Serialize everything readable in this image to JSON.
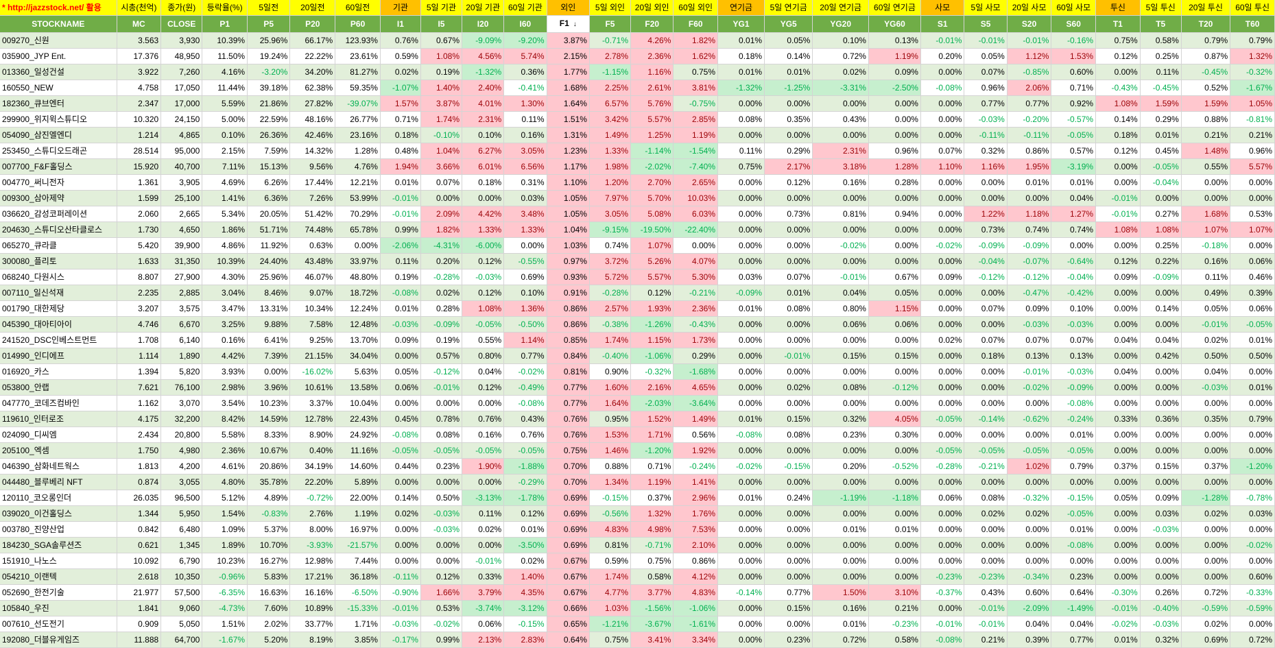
{
  "site_url": "* http://jazzstock.net/ 활용",
  "group_headers": [
    "시총(천억)",
    "종가(원)",
    "등락율(%)",
    "5일전",
    "20일전",
    "60일전",
    "기관",
    "5일 기관",
    "20일 기관",
    "60일 기관",
    "외인",
    "5일 외인",
    "20일 외인",
    "60일 외인",
    "연기금",
    "5일 연기금",
    "20일 연기금",
    "60일 연기금",
    "사모",
    "5일 사모",
    "20일 사모",
    "60일 사모",
    "투신",
    "5일 투신",
    "20일 투신",
    "60일 투신"
  ],
  "column_headers": [
    "STOCKNAME",
    "MC",
    "CLOSE",
    "P1",
    "P5",
    "P20",
    "P60",
    "I1",
    "I5",
    "I20",
    "I60",
    "F1",
    "F5",
    "F20",
    "F60",
    "YG1",
    "YG5",
    "YG20",
    "YG60",
    "S1",
    "S5",
    "S20",
    "S60",
    "T1",
    "T5",
    "T20",
    "T60"
  ],
  "sort_indicator": "↓",
  "rows": [
    [
      "009270_신원",
      "3.563",
      "3,930",
      "10.39%",
      "25.96%",
      "66.17%",
      "123.93%",
      "0.76%",
      "0.67%",
      "-9.09%",
      "-9.20%",
      "3.87%",
      "-0.71%",
      "4.26%",
      "1.82%",
      "0.01%",
      "0.05%",
      "0.10%",
      "0.13%",
      "-0.01%",
      "-0.01%",
      "-0.01%",
      "-0.16%",
      "0.75%",
      "0.58%",
      "0.79%",
      "0.79%"
    ],
    [
      "035900_JYP Ent.",
      "17.376",
      "48,950",
      "11.50%",
      "19.24%",
      "22.22%",
      "23.61%",
      "0.59%",
      "1.08%",
      "4.56%",
      "5.74%",
      "2.15%",
      "2.78%",
      "2.36%",
      "1.62%",
      "0.18%",
      "0.14%",
      "0.72%",
      "1.19%",
      "0.20%",
      "0.05%",
      "1.12%",
      "1.53%",
      "0.12%",
      "0.25%",
      "0.87%",
      "1.32%"
    ],
    [
      "013360_일성건설",
      "3.922",
      "7,260",
      "4.16%",
      "-3.20%",
      "34.20%",
      "81.27%",
      "0.02%",
      "0.19%",
      "-1.32%",
      "0.36%",
      "1.77%",
      "-1.15%",
      "1.16%",
      "0.75%",
      "0.01%",
      "0.01%",
      "0.02%",
      "0.09%",
      "0.00%",
      "0.07%",
      "-0.85%",
      "0.60%",
      "0.00%",
      "0.11%",
      "-0.45%",
      "-0.32%"
    ],
    [
      "160550_NEW",
      "4.758",
      "17,050",
      "11.44%",
      "39.18%",
      "62.38%",
      "59.35%",
      "-1.07%",
      "1.40%",
      "2.40%",
      "-0.41%",
      "1.68%",
      "2.25%",
      "2.61%",
      "3.81%",
      "-1.32%",
      "-1.25%",
      "-3.31%",
      "-2.50%",
      "-0.08%",
      "0.96%",
      "2.06%",
      "0.71%",
      "-0.43%",
      "-0.45%",
      "0.52%",
      "-1.67%"
    ],
    [
      "182360_큐브엔터",
      "2.347",
      "17,000",
      "5.59%",
      "21.86%",
      "27.82%",
      "-39.07%",
      "1.57%",
      "3.87%",
      "4.01%",
      "1.30%",
      "1.64%",
      "6.57%",
      "5.76%",
      "-0.75%",
      "0.00%",
      "0.00%",
      "0.00%",
      "0.00%",
      "0.00%",
      "0.77%",
      "0.77%",
      "0.92%",
      "1.08%",
      "1.59%",
      "1.59%",
      "1.05%"
    ],
    [
      "299900_위지윅스튜디오",
      "10.320",
      "24,150",
      "5.00%",
      "22.59%",
      "48.16%",
      "26.77%",
      "0.71%",
      "1.74%",
      "2.31%",
      "0.11%",
      "1.51%",
      "3.42%",
      "5.57%",
      "2.85%",
      "0.08%",
      "0.35%",
      "0.43%",
      "0.00%",
      "0.00%",
      "-0.03%",
      "-0.20%",
      "-0.57%",
      "0.14%",
      "0.29%",
      "0.88%",
      "-0.81%"
    ],
    [
      "054090_삼진엘엔디",
      "1.214",
      "4,865",
      "0.10%",
      "26.36%",
      "42.46%",
      "23.16%",
      "0.18%",
      "-0.10%",
      "0.10%",
      "0.16%",
      "1.31%",
      "1.49%",
      "1.25%",
      "1.19%",
      "0.00%",
      "0.00%",
      "0.00%",
      "0.00%",
      "0.00%",
      "-0.11%",
      "-0.11%",
      "-0.05%",
      "0.18%",
      "0.01%",
      "0.21%",
      "0.21%"
    ],
    [
      "253450_스튜디오드래곤",
      "28.514",
      "95,000",
      "2.15%",
      "7.59%",
      "14.32%",
      "1.28%",
      "0.48%",
      "1.04%",
      "6.27%",
      "3.05%",
      "1.23%",
      "1.33%",
      "-1.14%",
      "-1.54%",
      "0.11%",
      "0.29%",
      "2.31%",
      "0.96%",
      "0.07%",
      "0.32%",
      "0.86%",
      "0.57%",
      "0.12%",
      "0.45%",
      "1.48%",
      "0.96%"
    ],
    [
      "007700_F&F홀딩스",
      "15.920",
      "40,700",
      "7.11%",
      "15.13%",
      "9.56%",
      "4.76%",
      "1.94%",
      "3.66%",
      "6.01%",
      "6.56%",
      "1.17%",
      "1.98%",
      "-2.02%",
      "-7.40%",
      "0.75%",
      "2.17%",
      "3.18%",
      "1.28%",
      "1.10%",
      "1.16%",
      "1.95%",
      "-3.19%",
      "0.00%",
      "-0.05%",
      "0.55%",
      "5.57%"
    ],
    [
      "004770_써니전자",
      "1.361",
      "3,905",
      "4.69%",
      "6.26%",
      "17.44%",
      "12.21%",
      "0.01%",
      "0.07%",
      "0.18%",
      "0.31%",
      "1.10%",
      "1.20%",
      "2.70%",
      "2.65%",
      "0.00%",
      "0.12%",
      "0.16%",
      "0.28%",
      "0.00%",
      "0.00%",
      "0.01%",
      "0.01%",
      "0.00%",
      "-0.04%",
      "0.00%",
      "0.00%"
    ],
    [
      "009300_삼아제약",
      "1.599",
      "25,100",
      "1.41%",
      "6.36%",
      "7.26%",
      "53.99%",
      "-0.01%",
      "0.00%",
      "0.00%",
      "0.03%",
      "1.05%",
      "7.97%",
      "5.70%",
      "10.03%",
      "0.00%",
      "0.00%",
      "0.00%",
      "0.00%",
      "0.00%",
      "0.00%",
      "0.00%",
      "0.04%",
      "-0.01%",
      "0.00%",
      "0.00%",
      "0.00%"
    ],
    [
      "036620_감성코퍼레이션",
      "2.060",
      "2,665",
      "5.34%",
      "20.05%",
      "51.42%",
      "70.29%",
      "-0.01%",
      "2.09%",
      "4.42%",
      "3.48%",
      "1.05%",
      "3.05%",
      "5.08%",
      "6.03%",
      "0.00%",
      "0.73%",
      "0.81%",
      "0.94%",
      "0.00%",
      "1.22%",
      "1.18%",
      "1.27%",
      "-0.01%",
      "0.27%",
      "1.68%",
      "0.53%"
    ],
    [
      "204630_스튜디오산타클로스",
      "1.730",
      "4,650",
      "1.86%",
      "51.71%",
      "74.48%",
      "65.78%",
      "0.99%",
      "1.82%",
      "1.33%",
      "1.33%",
      "1.04%",
      "-9.15%",
      "-19.50%",
      "-22.40%",
      "0.00%",
      "0.00%",
      "0.00%",
      "0.00%",
      "0.00%",
      "0.73%",
      "0.74%",
      "0.74%",
      "1.08%",
      "1.08%",
      "1.07%",
      "1.07%"
    ],
    [
      "065270_큐라클",
      "5.420",
      "39,900",
      "4.86%",
      "11.92%",
      "0.63%",
      "0.00%",
      "-2.06%",
      "-4.31%",
      "-6.00%",
      "0.00%",
      "1.03%",
      "0.74%",
      "1.07%",
      "0.00%",
      "0.00%",
      "0.00%",
      "-0.02%",
      "0.00%",
      "-0.02%",
      "-0.09%",
      "-0.09%",
      "0.00%",
      "0.00%",
      "0.25%",
      "-0.18%",
      "0.00%"
    ],
    [
      "300080_플리토",
      "1.633",
      "31,350",
      "10.39%",
      "24.40%",
      "43.48%",
      "33.97%",
      "0.11%",
      "0.20%",
      "0.12%",
      "-0.55%",
      "0.97%",
      "3.72%",
      "5.26%",
      "4.07%",
      "0.00%",
      "0.00%",
      "0.00%",
      "0.00%",
      "0.00%",
      "-0.04%",
      "-0.07%",
      "-0.64%",
      "0.12%",
      "0.22%",
      "0.16%",
      "0.06%"
    ],
    [
      "068240_다원시스",
      "8.807",
      "27,900",
      "4.30%",
      "25.96%",
      "46.07%",
      "48.80%",
      "0.19%",
      "-0.28%",
      "-0.03%",
      "0.69%",
      "0.93%",
      "5.72%",
      "5.57%",
      "5.30%",
      "0.03%",
      "0.07%",
      "-0.01%",
      "0.67%",
      "0.09%",
      "-0.12%",
      "-0.12%",
      "-0.04%",
      "0.09%",
      "-0.09%",
      "0.11%",
      "0.46%"
    ],
    [
      "007110_일신석재",
      "2.235",
      "2,885",
      "3.04%",
      "8.46%",
      "9.07%",
      "18.72%",
      "-0.08%",
      "0.02%",
      "0.12%",
      "0.10%",
      "0.91%",
      "-0.28%",
      "0.12%",
      "-0.21%",
      "-0.09%",
      "0.01%",
      "0.04%",
      "0.05%",
      "0.00%",
      "0.00%",
      "-0.47%",
      "-0.42%",
      "0.00%",
      "0.00%",
      "0.49%",
      "0.39%"
    ],
    [
      "001790_대한제당",
      "3.207",
      "3,575",
      "3.47%",
      "13.31%",
      "10.34%",
      "12.24%",
      "0.01%",
      "0.28%",
      "1.08%",
      "1.36%",
      "0.86%",
      "2.57%",
      "1.93%",
      "2.36%",
      "0.01%",
      "0.08%",
      "0.80%",
      "1.15%",
      "0.00%",
      "0.07%",
      "0.09%",
      "0.10%",
      "0.00%",
      "0.14%",
      "0.05%",
      "0.06%"
    ],
    [
      "045390_대아티아이",
      "4.746",
      "6,670",
      "3.25%",
      "9.88%",
      "7.58%",
      "12.48%",
      "-0.03%",
      "-0.09%",
      "-0.05%",
      "-0.50%",
      "0.86%",
      "-0.38%",
      "-1.26%",
      "-0.43%",
      "0.00%",
      "0.00%",
      "0.06%",
      "0.06%",
      "0.00%",
      "0.00%",
      "-0.03%",
      "-0.03%",
      "0.00%",
      "0.00%",
      "-0.01%",
      "-0.05%"
    ],
    [
      "241520_DSC인베스트먼트",
      "1.708",
      "6,140",
      "0.16%",
      "6.41%",
      "9.25%",
      "13.70%",
      "0.09%",
      "0.19%",
      "0.55%",
      "1.14%",
      "0.85%",
      "1.74%",
      "1.15%",
      "1.73%",
      "0.00%",
      "0.00%",
      "0.00%",
      "0.00%",
      "0.02%",
      "0.07%",
      "0.07%",
      "0.07%",
      "0.04%",
      "0.04%",
      "0.02%",
      "0.01%"
    ],
    [
      "014990_인디에프",
      "1.114",
      "1,890",
      "4.42%",
      "7.39%",
      "21.15%",
      "34.04%",
      "0.00%",
      "0.57%",
      "0.80%",
      "0.77%",
      "0.84%",
      "-0.40%",
      "-1.06%",
      "0.29%",
      "0.00%",
      "-0.01%",
      "0.15%",
      "0.15%",
      "0.00%",
      "0.18%",
      "0.13%",
      "0.13%",
      "0.00%",
      "0.42%",
      "0.50%",
      "0.50%"
    ],
    [
      "016920_카스",
      "1.394",
      "5,820",
      "3.93%",
      "0.00%",
      "-16.02%",
      "5.63%",
      "0.05%",
      "-0.12%",
      "0.04%",
      "-0.02%",
      "0.81%",
      "0.90%",
      "-0.32%",
      "-1.68%",
      "0.00%",
      "0.00%",
      "0.00%",
      "0.00%",
      "0.00%",
      "0.00%",
      "-0.01%",
      "-0.03%",
      "0.04%",
      "0.00%",
      "0.04%",
      "0.00%"
    ],
    [
      "053800_안랩",
      "7.621",
      "76,100",
      "2.98%",
      "3.96%",
      "10.61%",
      "13.58%",
      "0.06%",
      "-0.01%",
      "0.12%",
      "-0.49%",
      "0.77%",
      "1.60%",
      "2.16%",
      "4.65%",
      "0.00%",
      "0.02%",
      "0.08%",
      "-0.12%",
      "0.00%",
      "0.00%",
      "-0.02%",
      "-0.09%",
      "0.00%",
      "0.00%",
      "-0.03%",
      "0.01%"
    ],
    [
      "047770_코데즈컴바인",
      "1.162",
      "3,070",
      "3.54%",
      "10.23%",
      "3.37%",
      "10.04%",
      "0.00%",
      "0.00%",
      "0.00%",
      "-0.08%",
      "0.77%",
      "1.64%",
      "-2.03%",
      "-3.64%",
      "0.00%",
      "0.00%",
      "0.00%",
      "0.00%",
      "0.00%",
      "0.00%",
      "0.00%",
      "-0.08%",
      "0.00%",
      "0.00%",
      "0.00%",
      "0.00%"
    ],
    [
      "119610_인터로조",
      "4.175",
      "32,200",
      "8.42%",
      "14.59%",
      "12.78%",
      "22.43%",
      "0.45%",
      "0.78%",
      "0.76%",
      "0.43%",
      "0.76%",
      "0.95%",
      "1.52%",
      "1.49%",
      "0.01%",
      "0.15%",
      "0.32%",
      "4.05%",
      "-0.05%",
      "-0.14%",
      "-0.62%",
      "-0.24%",
      "0.33%",
      "0.36%",
      "0.35%",
      "0.79%"
    ],
    [
      "024090_디씨엠",
      "2.434",
      "20,800",
      "5.58%",
      "8.33%",
      "8.90%",
      "24.92%",
      "-0.08%",
      "0.08%",
      "0.16%",
      "0.76%",
      "0.76%",
      "1.53%",
      "1.71%",
      "0.56%",
      "-0.08%",
      "0.08%",
      "0.23%",
      "0.30%",
      "0.00%",
      "0.00%",
      "0.00%",
      "0.01%",
      "0.00%",
      "0.00%",
      "0.00%",
      "0.00%"
    ],
    [
      "205100_엑셈",
      "1.750",
      "4,980",
      "2.36%",
      "10.67%",
      "0.40%",
      "11.16%",
      "-0.05%",
      "-0.05%",
      "-0.05%",
      "-0.05%",
      "0.75%",
      "1.46%",
      "-1.20%",
      "1.92%",
      "0.00%",
      "0.00%",
      "0.00%",
      "0.00%",
      "-0.05%",
      "-0.05%",
      "-0.05%",
      "-0.05%",
      "0.00%",
      "0.00%",
      "0.00%",
      "0.00%"
    ],
    [
      "046390_삼화네트웍스",
      "1.813",
      "4,200",
      "4.61%",
      "20.86%",
      "34.19%",
      "14.60%",
      "0.44%",
      "0.23%",
      "1.90%",
      "-1.88%",
      "0.70%",
      "0.88%",
      "0.71%",
      "-0.24%",
      "-0.02%",
      "-0.15%",
      "0.20%",
      "-0.52%",
      "-0.28%",
      "-0.21%",
      "1.02%",
      "0.79%",
      "0.37%",
      "0.15%",
      "0.37%",
      "-1.20%"
    ],
    [
      "044480_블루베리 NFT",
      "0.874",
      "3,055",
      "4.80%",
      "35.78%",
      "22.20%",
      "5.89%",
      "0.00%",
      "0.00%",
      "0.00%",
      "-0.29%",
      "0.70%",
      "1.34%",
      "1.19%",
      "1.41%",
      "0.00%",
      "0.00%",
      "0.00%",
      "0.00%",
      "0.00%",
      "0.00%",
      "0.00%",
      "0.00%",
      "0.00%",
      "0.00%",
      "0.00%",
      "0.00%"
    ],
    [
      "120110_코오롱인더",
      "26.035",
      "96,500",
      "5.12%",
      "4.89%",
      "-0.72%",
      "22.00%",
      "0.14%",
      "0.50%",
      "-3.13%",
      "-1.78%",
      "0.69%",
      "-0.15%",
      "0.37%",
      "2.96%",
      "0.01%",
      "0.24%",
      "-1.19%",
      "-1.18%",
      "0.06%",
      "0.08%",
      "-0.32%",
      "-0.15%",
      "0.05%",
      "0.09%",
      "-1.28%",
      "-0.78%"
    ],
    [
      "039020_이건홀딩스",
      "1.344",
      "5,950",
      "1.54%",
      "-0.83%",
      "2.76%",
      "1.19%",
      "0.02%",
      "-0.03%",
      "0.11%",
      "0.12%",
      "0.69%",
      "-0.56%",
      "1.32%",
      "1.76%",
      "0.00%",
      "0.00%",
      "0.00%",
      "0.00%",
      "0.00%",
      "0.02%",
      "0.02%",
      "-0.05%",
      "0.00%",
      "0.03%",
      "0.02%",
      "0.03%"
    ],
    [
      "003780_진양산업",
      "0.842",
      "6,480",
      "1.09%",
      "5.37%",
      "8.00%",
      "16.97%",
      "0.00%",
      "-0.03%",
      "0.02%",
      "0.01%",
      "0.69%",
      "4.83%",
      "4.98%",
      "7.53%",
      "0.00%",
      "0.00%",
      "0.01%",
      "0.01%",
      "0.00%",
      "0.00%",
      "0.00%",
      "0.01%",
      "0.00%",
      "-0.03%",
      "0.00%",
      "0.00%"
    ],
    [
      "184230_SGA솔루션즈",
      "0.621",
      "1,345",
      "1.89%",
      "10.70%",
      "-3.93%",
      "-21.57%",
      "0.00%",
      "0.00%",
      "0.00%",
      "-3.50%",
      "0.69%",
      "0.81%",
      "-0.71%",
      "2.10%",
      "0.00%",
      "0.00%",
      "0.00%",
      "0.00%",
      "0.00%",
      "0.00%",
      "0.00%",
      "-0.08%",
      "0.00%",
      "0.00%",
      "0.00%",
      "-0.02%"
    ],
    [
      "151910_나노스",
      "10.092",
      "6,790",
      "10.23%",
      "16.27%",
      "12.98%",
      "7.44%",
      "0.00%",
      "0.00%",
      "-0.01%",
      "0.02%",
      "0.67%",
      "0.59%",
      "0.75%",
      "0.86%",
      "0.00%",
      "0.00%",
      "0.00%",
      "0.00%",
      "0.00%",
      "0.00%",
      "0.00%",
      "0.00%",
      "0.00%",
      "0.00%",
      "0.00%",
      "0.00%"
    ],
    [
      "054210_이랜텍",
      "2.618",
      "10,350",
      "-0.96%",
      "5.83%",
      "17.21%",
      "36.18%",
      "-0.11%",
      "0.12%",
      "0.33%",
      "1.40%",
      "0.67%",
      "1.74%",
      "0.58%",
      "4.12%",
      "0.00%",
      "0.00%",
      "0.00%",
      "0.00%",
      "-0.23%",
      "-0.23%",
      "-0.34%",
      "0.23%",
      "0.00%",
      "0.00%",
      "0.00%",
      "0.60%"
    ],
    [
      "052690_한전기술",
      "21.977",
      "57,500",
      "-6.35%",
      "16.63%",
      "16.16%",
      "-6.50%",
      "-0.90%",
      "1.66%",
      "3.79%",
      "4.35%",
      "0.67%",
      "4.77%",
      "3.77%",
      "4.83%",
      "-0.14%",
      "0.77%",
      "1.50%",
      "3.10%",
      "-0.37%",
      "0.43%",
      "0.60%",
      "0.64%",
      "-0.30%",
      "0.26%",
      "0.72%",
      "-0.33%"
    ],
    [
      "105840_우진",
      "1.841",
      "9,060",
      "-4.73%",
      "7.60%",
      "10.89%",
      "-15.33%",
      "-0.01%",
      "0.53%",
      "-3.74%",
      "-3.12%",
      "0.66%",
      "1.03%",
      "-1.56%",
      "-1.06%",
      "0.00%",
      "0.15%",
      "0.16%",
      "0.21%",
      "0.00%",
      "-0.01%",
      "-2.09%",
      "-1.49%",
      "-0.01%",
      "-0.40%",
      "-0.59%",
      "-0.59%"
    ],
    [
      "007610_선도전기",
      "0.909",
      "5,050",
      "1.51%",
      "2.02%",
      "33.77%",
      "1.71%",
      "-0.03%",
      "-0.02%",
      "0.06%",
      "-0.15%",
      "0.65%",
      "-1.21%",
      "-3.67%",
      "-1.61%",
      "0.00%",
      "0.00%",
      "0.01%",
      "-0.23%",
      "-0.01%",
      "-0.01%",
      "0.04%",
      "0.04%",
      "-0.02%",
      "-0.03%",
      "0.02%",
      "0.00%"
    ],
    [
      "192080_더블유게임즈",
      "11.888",
      "64,700",
      "-1.67%",
      "5.20%",
      "8.19%",
      "3.85%",
      "-0.17%",
      "0.99%",
      "2.13%",
      "2.83%",
      "0.64%",
      "0.75%",
      "3.41%",
      "3.34%",
      "0.00%",
      "0.23%",
      "0.72%",
      "0.58%",
      "-0.08%",
      "0.21%",
      "0.39%",
      "0.77%",
      "0.01%",
      "0.32%",
      "0.69%",
      "0.72%"
    ]
  ]
}
